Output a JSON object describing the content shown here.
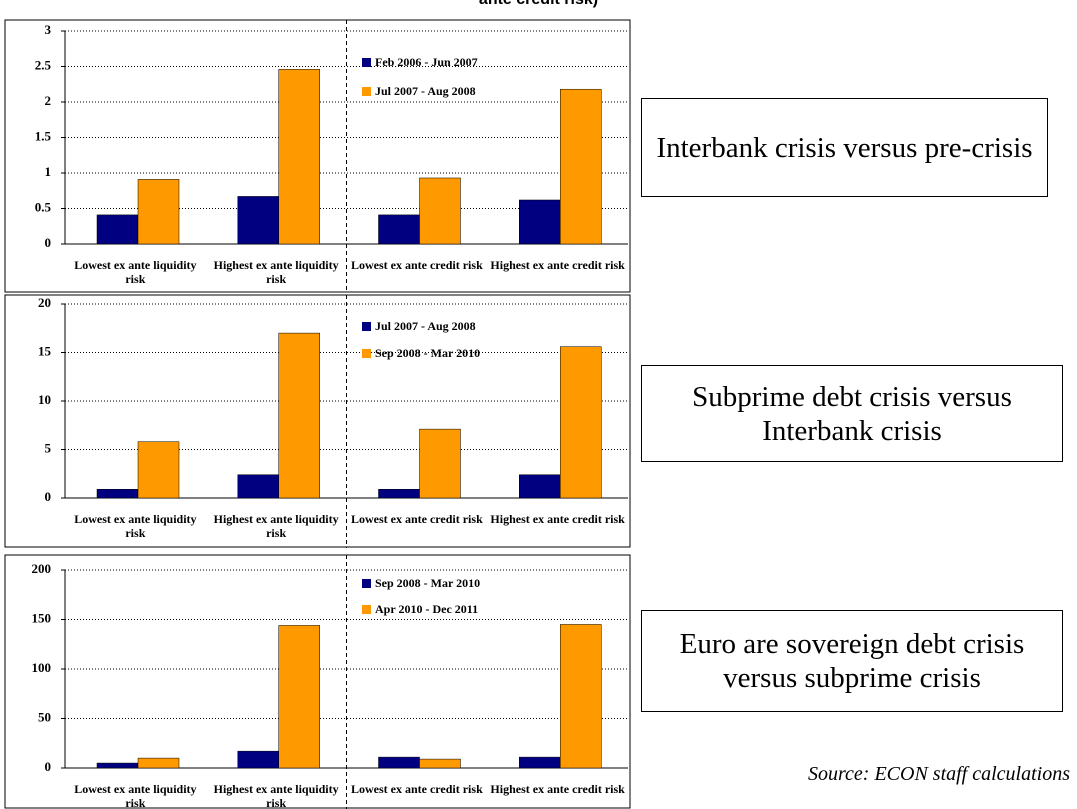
{
  "header": {
    "title": "ante credit risk)"
  },
  "chart_data": [
    {
      "type": "bar",
      "categories": [
        "Lowest ex ante liquidity risk",
        "Highest ex ante liquidity risk",
        "Lowest ex ante credit risk",
        "Highest ex ante credit risk"
      ],
      "series": [
        {
          "name": "Feb 2006 - Jun 2007",
          "color": "#000080",
          "values": [
            0.41,
            0.67,
            0.41,
            0.62
          ]
        },
        {
          "name": "Jul 2007 - Aug 2008",
          "color": "#ff9900",
          "values": [
            0.91,
            2.46,
            0.93,
            2.18
          ]
        }
      ],
      "ylim": [
        0,
        3
      ],
      "yticks": [
        0,
        0.5,
        1,
        1.5,
        2,
        2.5,
        3
      ],
      "grid": true,
      "annotation": "Interbank crisis versus pre-crisis"
    },
    {
      "type": "bar",
      "categories": [
        "Lowest ex ante liquidity risk",
        "Highest ex ante liquidity risk",
        "Lowest ex ante credit risk",
        "Highest ex ante credit risk"
      ],
      "series": [
        {
          "name": "Jul 2007 - Aug 2008",
          "color": "#000080",
          "values": [
            0.9,
            2.4,
            0.9,
            2.4
          ]
        },
        {
          "name": "Sep 2008 - Mar 2010",
          "color": "#ff9900",
          "values": [
            5.8,
            17.0,
            7.1,
            15.6
          ]
        }
      ],
      "ylim": [
        0,
        20
      ],
      "yticks": [
        0,
        5,
        10,
        15,
        20
      ],
      "grid": true,
      "annotation": "Subprime debt crisis versus Interbank crisis"
    },
    {
      "type": "bar",
      "categories": [
        "Lowest ex ante liquidity risk",
        "Highest ex ante liquidity risk",
        "Lowest ex ante credit risk",
        "Highest ex ante credit risk"
      ],
      "series": [
        {
          "name": "Sep 2008 - Mar 2010",
          "color": "#000080",
          "values": [
            5,
            17,
            11,
            11
          ]
        },
        {
          "name": "Apr 2010 - Dec 2011",
          "color": "#ff9900",
          "values": [
            10,
            144,
            9,
            145
          ]
        }
      ],
      "ylim": [
        0,
        200
      ],
      "yticks": [
        0,
        50,
        100,
        150,
        200
      ],
      "grid": true,
      "annotation": "Euro are sovereign debt crisis versus subprime crisis"
    }
  ],
  "source": "Source: ECON staff calculations"
}
